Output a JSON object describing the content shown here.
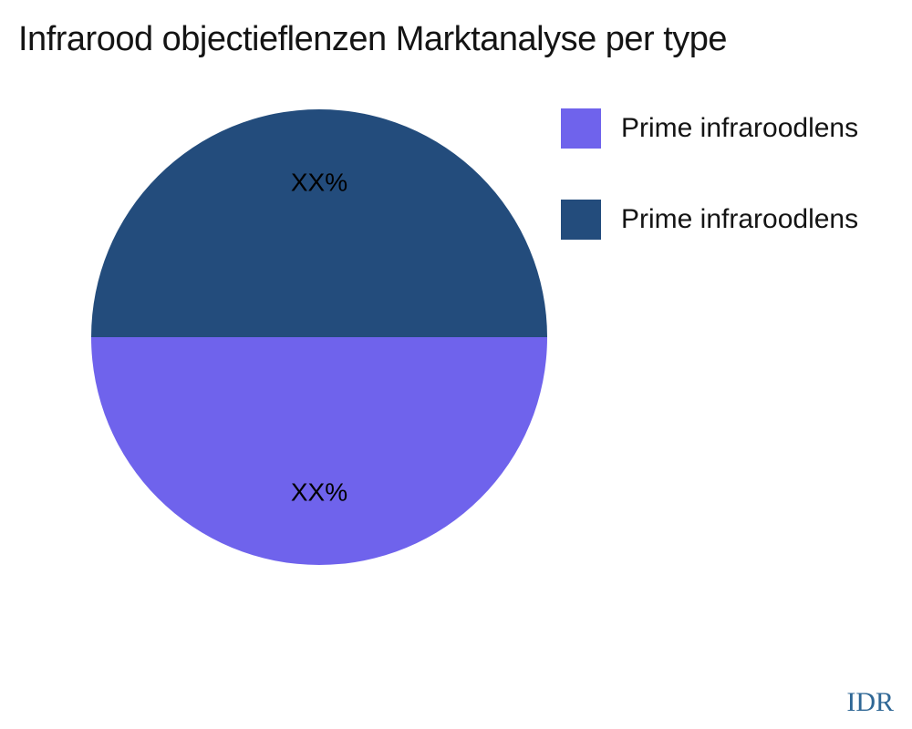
{
  "chart_data": {
    "type": "pie",
    "title": "Infrarood objectieflenzen Marktanalyse per type",
    "start_angle_deg": 0,
    "direction": "clockwise",
    "label_color": "#000000",
    "label_radius_frac": 0.68,
    "slices": [
      {
        "label": "Prime infraroodlens",
        "value": 50,
        "display_value": "XX%",
        "color": "#6f63ec",
        "position": "bottom-half"
      },
      {
        "label": "Prime infraroodlens",
        "value": 50,
        "display_value": "XX%",
        "color": "#234c7c",
        "position": "top-half"
      }
    ],
    "legend": {
      "position": "right",
      "items": [
        {
          "label": "Prime infraroodlens",
          "color": "#6f63ec"
        },
        {
          "label": "Prime infraroodlens",
          "color": "#234c7c"
        }
      ]
    },
    "watermark": {
      "text": "IDR",
      "color": "#2f6795"
    }
  }
}
